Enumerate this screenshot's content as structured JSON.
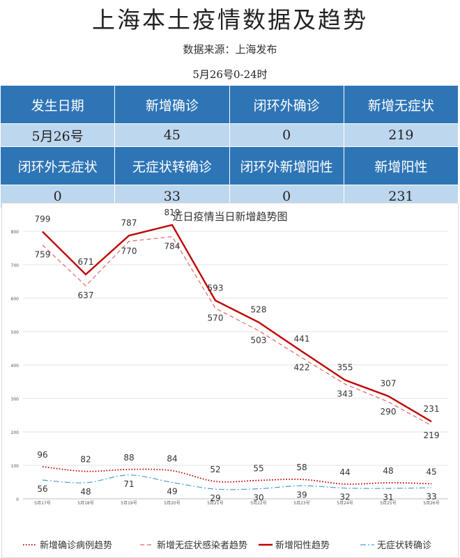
{
  "header": {
    "title": "上海本土疫情数据及趋势",
    "source": "数据来源：上海发布",
    "period": "5月26号0-24时"
  },
  "stats_table": {
    "rows": [
      [
        "发生日期",
        "新增确诊",
        "闭环外确诊",
        "新增无症状"
      ],
      [
        "5月26号",
        "45",
        "0",
        "219"
      ],
      [
        "闭环外无症状",
        "无症状转确诊",
        "闭环外新增阳性",
        "新增阳性"
      ],
      [
        "0",
        "33",
        "0",
        "231"
      ]
    ],
    "header_color": "#2e75b6",
    "value_color": "#bdd7ee"
  },
  "chart_data": {
    "type": "line",
    "title": "近日疫情当日新增趋势图",
    "categories": [
      "5月17号",
      "5月18号",
      "5月19号",
      "5月20号",
      "5月21号",
      "5月22号",
      "5月23号",
      "5月24号",
      "5月25号",
      "5月26号"
    ],
    "ylim": [
      0,
      850
    ],
    "yticks": [
      0,
      100,
      200,
      300,
      400,
      500,
      600,
      700,
      800
    ],
    "grid": true,
    "legend_position": "bottom",
    "series": [
      {
        "name": "新增确诊病例趋势",
        "values": [
          96,
          82,
          88,
          84,
          52,
          55,
          58,
          44,
          48,
          45
        ],
        "color": "#c00000",
        "style": "dotted"
      },
      {
        "name": "新增无症状感染者趋势",
        "values": [
          759,
          637,
          770,
          784,
          570,
          503,
          422,
          343,
          290,
          219
        ],
        "color": "#e06666",
        "style": "dashed"
      },
      {
        "name": "新增阳性趋势",
        "values": [
          799,
          671,
          787,
          819,
          593,
          528,
          441,
          355,
          307,
          231
        ],
        "color": "#c00000",
        "style": "solid"
      },
      {
        "name": "无症状转确诊",
        "values": [
          56,
          48,
          71,
          49,
          29,
          30,
          39,
          32,
          31,
          33
        ],
        "color": "#4f9fd6",
        "style": "dashdot"
      }
    ]
  }
}
